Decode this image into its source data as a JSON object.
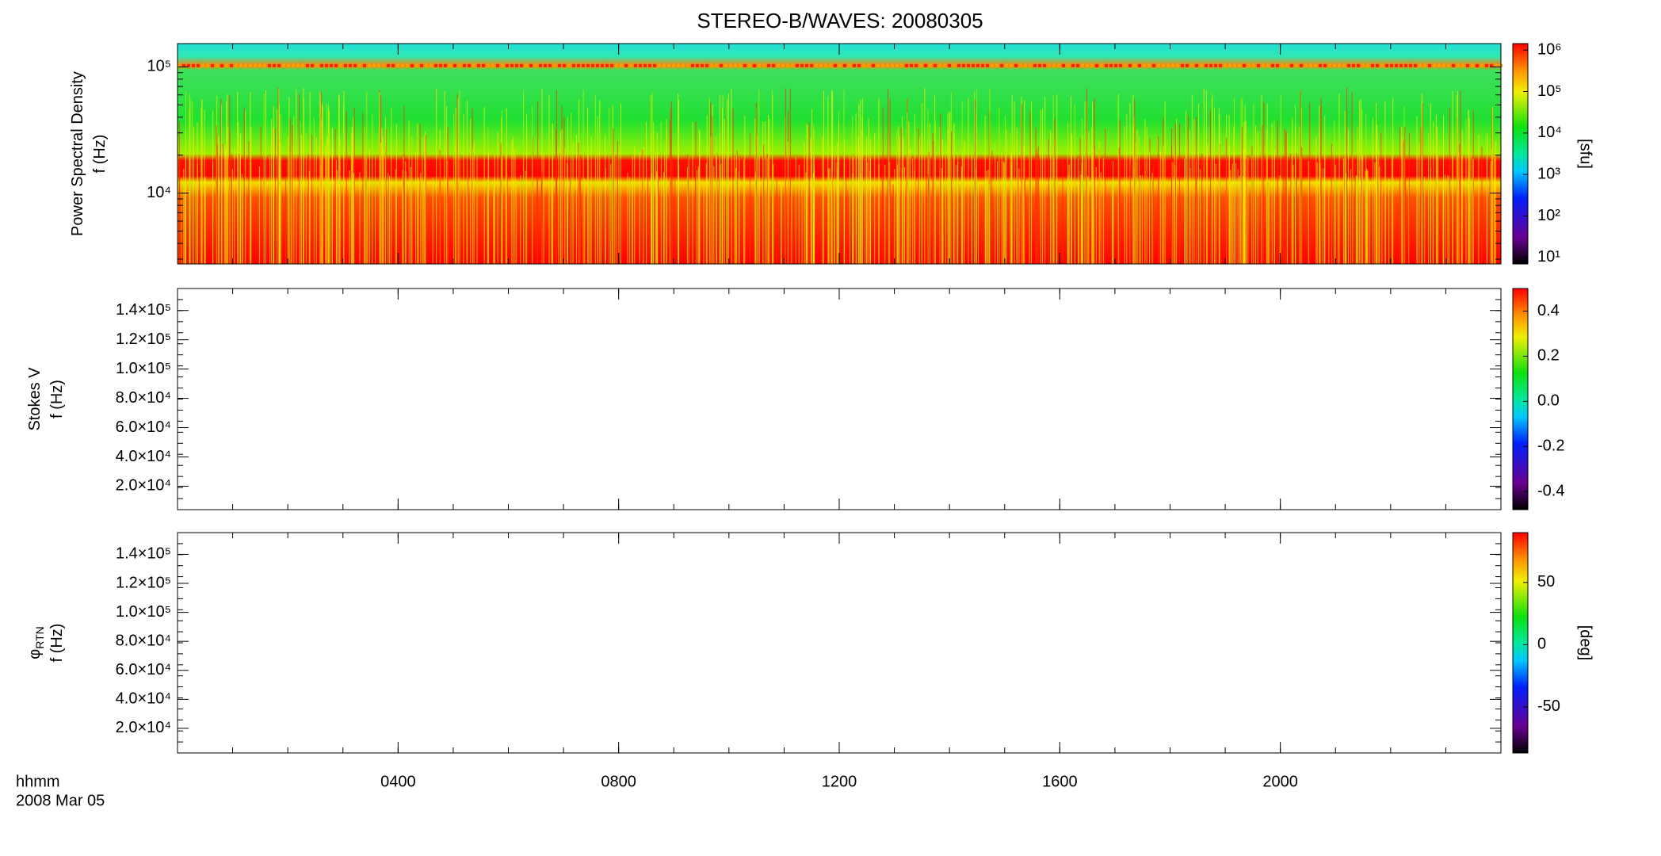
{
  "title": "STEREO-B/WAVES: 20080305",
  "x_axis": {
    "label": "hhmm",
    "date": "2008 Mar 05",
    "xlim": [
      0,
      24
    ],
    "xticks": [
      {
        "value": 4,
        "label": "0400"
      },
      {
        "value": 8,
        "label": "0800"
      },
      {
        "value": 12,
        "label": "1200"
      },
      {
        "value": 16,
        "label": "1600"
      },
      {
        "value": 20,
        "label": "2000"
      }
    ]
  },
  "chart_data": [
    {
      "type": "spectrogram",
      "ylabel": [
        "Power Spectral Density",
        "f (Hz)"
      ],
      "ylog": true,
      "ylim": [
        2750,
        153000
      ],
      "yticks": [
        {
          "value": 10000,
          "label": "10⁴"
        },
        {
          "value": 100000,
          "label": "10⁵"
        }
      ],
      "clog": true,
      "clim": [
        7,
        1430000
      ],
      "cticks": [
        {
          "value": 10,
          "label": "10¹"
        },
        {
          "value": 100,
          "label": "10²"
        },
        {
          "value": 1000,
          "label": "10³"
        },
        {
          "value": 10000,
          "label": "10⁴"
        },
        {
          "value": 100000,
          "label": "10⁵"
        },
        {
          "value": 1000000,
          "label": "10⁶"
        }
      ],
      "clabel": "[sfu]"
    },
    {
      "type": "spectrogram",
      "ylabel": [
        "Stokes V",
        "f (Hz)"
      ],
      "ylog": false,
      "ylim": [
        4000,
        155000
      ],
      "yticks": [
        {
          "value": 20000,
          "label": "2.0×10⁴"
        },
        {
          "value": 40000,
          "label": "4.0×10⁴"
        },
        {
          "value": 60000,
          "label": "6.0×10⁴"
        },
        {
          "value": 80000,
          "label": "8.0×10⁴"
        },
        {
          "value": 100000,
          "label": "1.0×10⁵"
        },
        {
          "value": 120000,
          "label": "1.2×10⁵"
        },
        {
          "value": 140000,
          "label": "1.4×10⁵"
        }
      ],
      "clog": false,
      "clim": [
        -0.48,
        0.5
      ],
      "cticks": [
        -0.4,
        -0.2,
        {
          "value": 0,
          "label": "0.0"
        },
        0.2,
        0.4
      ]
    },
    {
      "type": "spectrogram",
      "ylabel": [
        "φ",
        "f (Hz)"
      ],
      "ylabel_sub": "RTN",
      "ylog": false,
      "ylim": [
        3000,
        155000
      ],
      "yticks": [
        {
          "value": 20000,
          "label": "2.0×10⁴"
        },
        {
          "value": 40000,
          "label": "4.0×10⁴"
        },
        {
          "value": 60000,
          "label": "6.0×10⁴"
        },
        {
          "value": 80000,
          "label": "8.0×10⁴"
        },
        {
          "value": 100000,
          "label": "1.0×10⁵"
        },
        {
          "value": 120000,
          "label": "1.2×10⁵"
        },
        {
          "value": 140000,
          "label": "1.4×10⁵"
        }
      ],
      "clog": false,
      "clim": [
        -87,
        90
      ],
      "cticks": [
        -50,
        0,
        50
      ],
      "clabel": "[deg]"
    }
  ]
}
